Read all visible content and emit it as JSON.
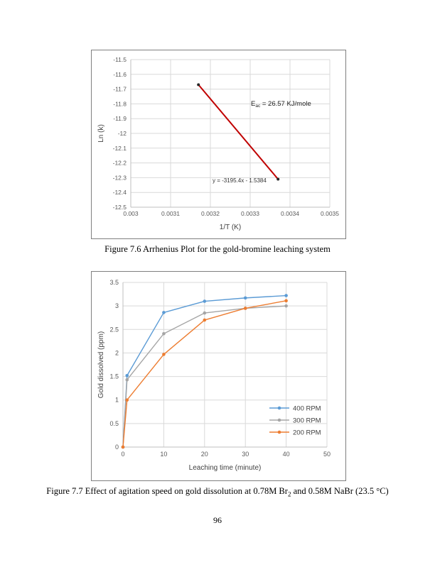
{
  "page": {
    "number": "96"
  },
  "figures": {
    "fig76": {
      "caption": "Figure 7.6 Arrhenius Plot for the gold-bromine leaching system"
    },
    "fig77": {
      "caption_prefix": "Figure 7.7 Effect of agitation speed on gold dissolution at 0.78M Br",
      "caption_sub": "2",
      "caption_suffix": " and 0.58M NaBr (23.5 °C)"
    }
  },
  "colors": {
    "trendline_red": "#C00000",
    "marker_dark": "#262626",
    "series_blue": "#5B9BD5",
    "series_gray": "#A5A5A5",
    "series_orange": "#ED7D31",
    "gridline": "#D9D9D9",
    "axis_line": "#BFBFBF",
    "tick_text": "#595959",
    "axis_title_text": "#404040"
  },
  "chart_data": [
    {
      "id": "arrhenius-plot",
      "type": "scatter",
      "title": "",
      "xlabel": "1/T (K)",
      "ylabel": "Ln (k)",
      "xlim": [
        0.003,
        0.0035
      ],
      "ylim": [
        -12.5,
        -11.5
      ],
      "xticks": [
        0.003,
        0.0031,
        0.0032,
        0.0033,
        0.0034,
        0.0035
      ],
      "yticks": [
        -11.5,
        -11.6,
        -11.7,
        -11.8,
        -11.9,
        -12,
        -12.1,
        -12.2,
        -12.3,
        -12.4,
        -12.5
      ],
      "xtick_labels": [
        "0.003",
        "0.0031",
        "0.0032",
        "0.0033",
        "0.0034",
        "0.0035"
      ],
      "ytick_labels": [
        "-11.5",
        "-11.6",
        "-11.7",
        "-11.8",
        "-11.9",
        "-12",
        "-12.1",
        "-12.2",
        "-12.3",
        "-12.4",
        "-12.5"
      ],
      "grid": true,
      "legend": false,
      "series": [
        {
          "name": "rate-constant-trendline",
          "color": "#C00000",
          "marker_color": "#262626",
          "x": [
            0.00317,
            0.00337
          ],
          "y": [
            -11.67,
            -12.31
          ]
        }
      ],
      "annotations": [
        {
          "name": "activation-energy-label",
          "prefix": "E",
          "sub": "ac",
          "text": " = 26.57 KJ/mole"
        },
        {
          "name": "trendline-equation",
          "text": "y = -3195.4x - 1.5384"
        }
      ]
    },
    {
      "id": "agitation-speed",
      "type": "line",
      "title": "",
      "xlabel": "Leaching time (minute)",
      "ylabel": "Gold dissolved (ppm)",
      "xlim": [
        0,
        50
      ],
      "ylim": [
        0,
        3.5
      ],
      "xticks": [
        0,
        10,
        20,
        30,
        40,
        50
      ],
      "yticks": [
        0,
        0.5,
        1,
        1.5,
        2,
        2.5,
        3,
        3.5
      ],
      "xtick_labels": [
        "0",
        "10",
        "20",
        "30",
        "40",
        "50"
      ],
      "ytick_labels": [
        "0",
        "0.5",
        "1",
        "1.5",
        "2",
        "2.5",
        "3",
        "3.5"
      ],
      "grid": true,
      "legend": true,
      "legend_position": "right-lower",
      "x": [
        0,
        1,
        10,
        20,
        30,
        40
      ],
      "series": [
        {
          "name": "400 RPM",
          "color": "#5B9BD5",
          "values": [
            0,
            1.52,
            2.86,
            3.1,
            3.17,
            3.22
          ]
        },
        {
          "name": "300 RPM",
          "color": "#A5A5A5",
          "values": [
            0,
            1.43,
            2.41,
            2.85,
            2.95,
            3.0
          ]
        },
        {
          "name": "200 RPM",
          "color": "#ED7D31",
          "values": [
            0,
            1.0,
            1.97,
            2.7,
            2.95,
            3.11
          ]
        }
      ]
    }
  ]
}
